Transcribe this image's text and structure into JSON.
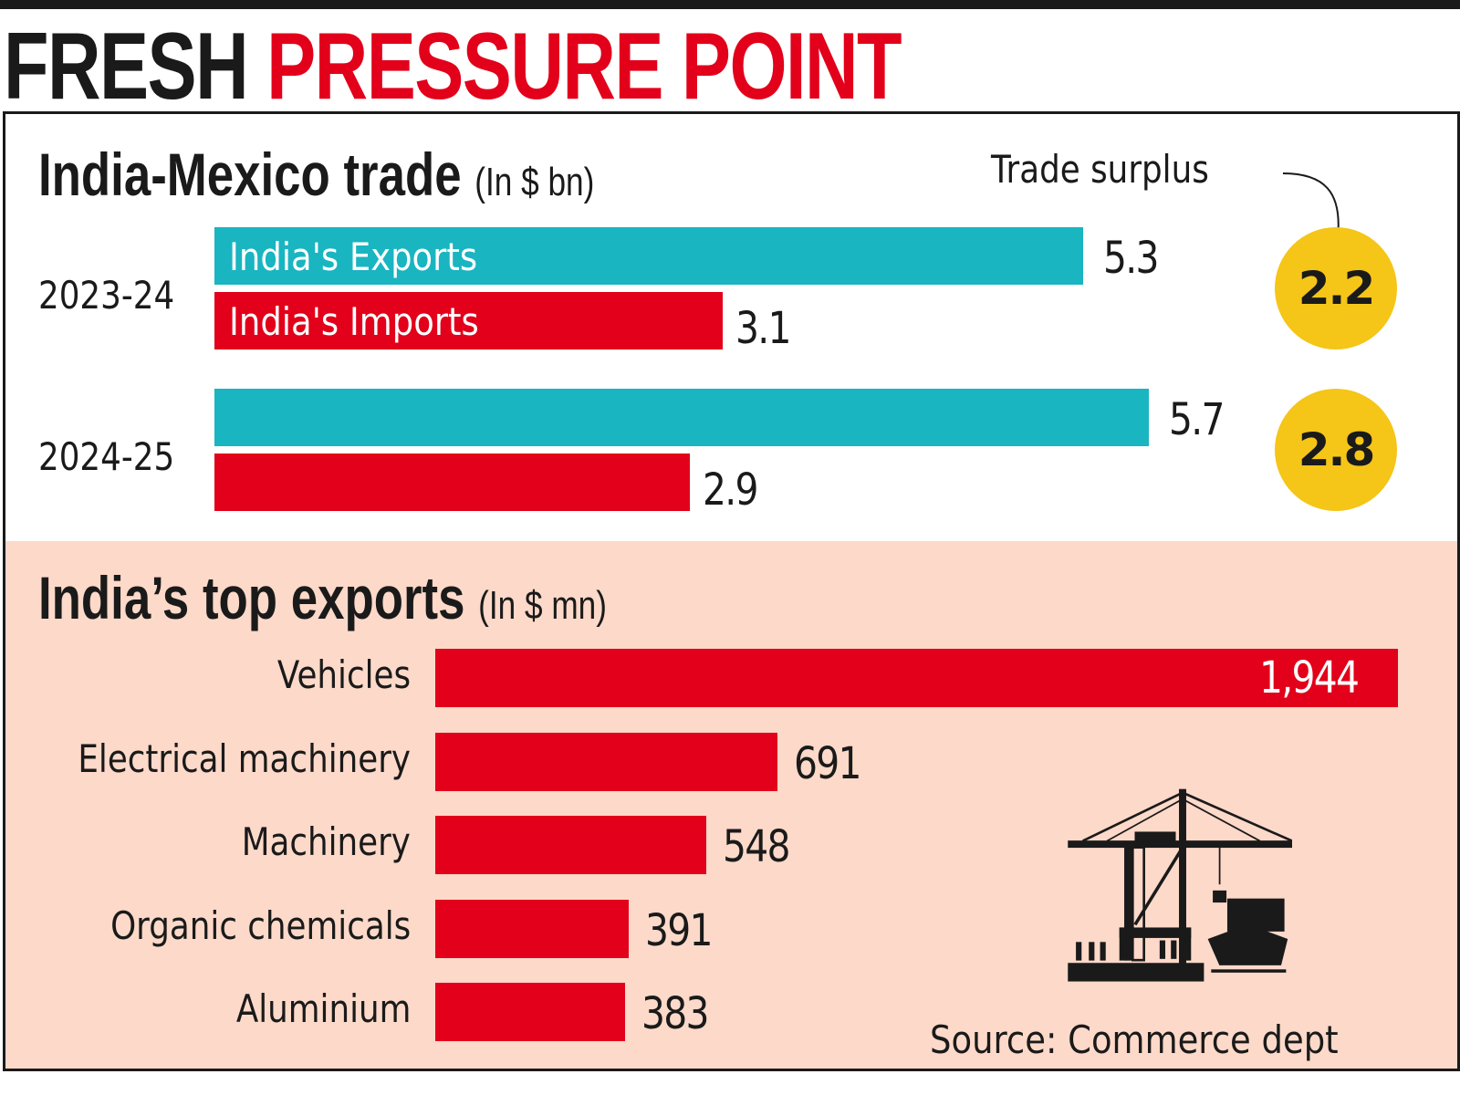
{
  "title": {
    "part1": "FRESH",
    "part2": "PRESSURE POINT"
  },
  "colors": {
    "exports": "#19b5c1",
    "imports": "#e2001a",
    "surplus": "#f5c518",
    "bottom_bg": "#fcd9c9",
    "top_exports_bar": "#e2001a"
  },
  "chart_data": [
    {
      "type": "bar",
      "orientation": "horizontal",
      "title": "India-Mexico trade",
      "unit": "(In $ bn)",
      "categories": [
        "2023-24",
        "2024-25"
      ],
      "series": [
        {
          "name": "India's Exports",
          "values": [
            5.3,
            5.7
          ]
        },
        {
          "name": "India's Imports",
          "values": [
            3.1,
            2.9
          ]
        }
      ],
      "value_labels": {
        "exports": [
          "5.3",
          "5.7"
        ],
        "imports": [
          "3.1",
          "2.9"
        ]
      },
      "annotation": {
        "label": "Trade surplus",
        "values": [
          "2.2",
          "2.8"
        ]
      }
    },
    {
      "type": "bar",
      "orientation": "horizontal",
      "title": "India’s top exports",
      "unit": "(In $ mn)",
      "categories": [
        "Vehicles",
        "Electrical machinery",
        "Machinery",
        "Organic chemicals",
        "Aluminium"
      ],
      "values": [
        1944,
        691,
        548,
        391,
        383
      ],
      "value_labels": [
        "1,944",
        "691",
        "548",
        "391",
        "383"
      ]
    }
  ],
  "icon": "port-crane-ship-icon",
  "source": "Source: Commerce dept"
}
